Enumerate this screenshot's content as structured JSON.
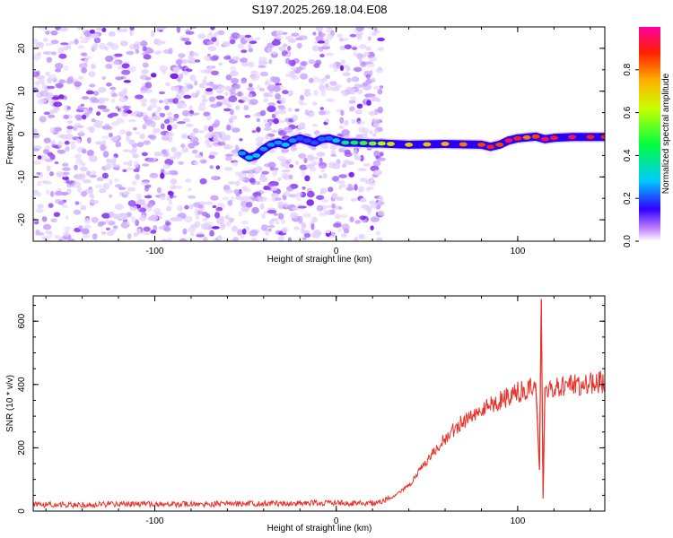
{
  "title": "S197.2025.269.18.04.E08",
  "chart_data": [
    {
      "type": "heatmap",
      "xlabel": "Height of straight line (km)",
      "ylabel": "Frequency (Hz)",
      "xlim": [
        -167,
        148
      ],
      "ylim": [
        -25,
        25
      ],
      "xticks": [
        -100,
        0,
        100
      ],
      "yticks": [
        -20,
        -10,
        0,
        10,
        20
      ],
      "noise_region_x": [
        -167,
        25
      ],
      "trace": {
        "x": [
          -52,
          -48,
          -44,
          -40,
          -36,
          -32,
          -28,
          -24,
          -20,
          -16,
          -12,
          -8,
          -4,
          0,
          5,
          10,
          15,
          20,
          25,
          30,
          40,
          50,
          60,
          70,
          80,
          85,
          90,
          95,
          100,
          105,
          110,
          115,
          120,
          130,
          140,
          148
        ],
        "y": [
          -4.5,
          -5.5,
          -5.0,
          -3.5,
          -2.5,
          -2.0,
          -2.5,
          -1.5,
          -1.0,
          -1.5,
          -2.0,
          -1.2,
          -1.0,
          -1.5,
          -2.0,
          -2.0,
          -2.1,
          -2.2,
          -2.2,
          -2.3,
          -2.5,
          -2.4,
          -2.3,
          -2.4,
          -2.5,
          -3.0,
          -2.5,
          -1.5,
          -1.0,
          -0.8,
          -0.6,
          -1.2,
          -0.9,
          -0.7,
          -0.7,
          -0.7
        ],
        "amplitude": [
          0.25,
          0.3,
          0.3,
          0.25,
          0.25,
          0.25,
          0.3,
          0.25,
          0.2,
          0.2,
          0.2,
          0.22,
          0.22,
          0.28,
          0.4,
          0.45,
          0.5,
          0.55,
          0.6,
          0.65,
          0.7,
          0.72,
          0.75,
          0.8,
          0.85,
          0.9,
          0.85,
          0.95,
          0.9,
          0.8,
          0.85,
          0.95,
          0.92,
          0.95,
          0.9,
          0.9
        ]
      },
      "colorbar": {
        "label": "Normalized spectral amplitude",
        "ticks": [
          0.0,
          0.2,
          0.4,
          0.6,
          0.8
        ],
        "range": [
          0,
          1
        ]
      }
    },
    {
      "type": "line",
      "xlabel": "Height of straight line (km)",
      "ylabel": "SNR (10 * v/v)",
      "xlim": [
        -167,
        148
      ],
      "ylim": [
        0,
        680
      ],
      "xticks": [
        -100,
        0,
        100
      ],
      "yticks": [
        0,
        200,
        400,
        600
      ],
      "series": [
        {
          "color": "#e8322a",
          "x": [
            -167,
            -140,
            -120,
            -100,
            -80,
            -60,
            -40,
            -20,
            0,
            10,
            20,
            25,
            30,
            40,
            50,
            60,
            70,
            80,
            90,
            100,
            105,
            110,
            112,
            113,
            114,
            115,
            120,
            130,
            140,
            148
          ],
          "values": [
            20,
            20,
            22,
            22,
            22,
            23,
            24,
            25,
            25,
            25,
            26,
            30,
            40,
            80,
            160,
            230,
            285,
            320,
            350,
            375,
            380,
            390,
            130,
            670,
            40,
            390,
            390,
            395,
            405,
            410
          ]
        }
      ]
    }
  ]
}
